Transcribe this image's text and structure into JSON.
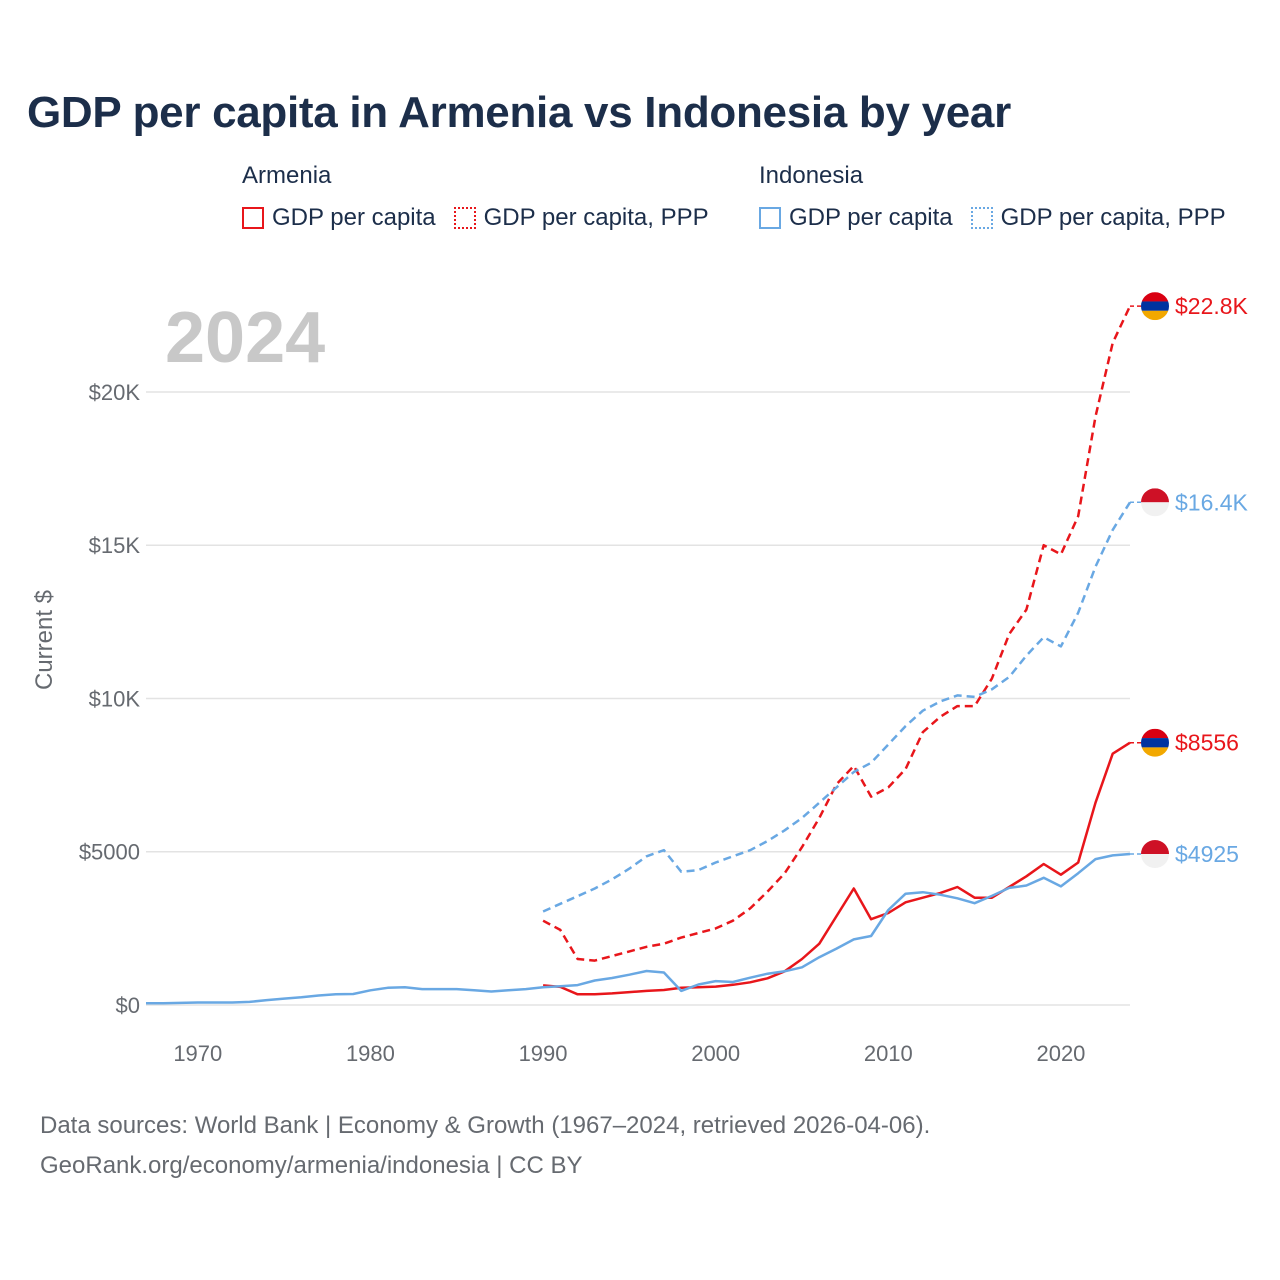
{
  "title": "GDP per capita in Armenia vs Indonesia by year",
  "legend": {
    "armenia": {
      "group": "Armenia",
      "gdp": "GDP per capita",
      "ppp": "GDP per capita, PPP",
      "color": "#e8161b"
    },
    "indonesia": {
      "group": "Indonesia",
      "gdp": "GDP per capita",
      "ppp": "GDP per capita, PPP",
      "color": "#69a8e3"
    }
  },
  "footer": {
    "sources": "Data sources: World Bank | Economy & Growth (1967–2024, retrieved 2026-04-06).",
    "credit": "GeoRank.org/economy/armenia/indonesia | CC BY"
  },
  "chart_data": {
    "type": "line",
    "title": "GDP per capita in Armenia vs Indonesia by year",
    "year_label": "2024",
    "ylabel": "Current $",
    "xlim": [
      1967,
      2024
    ],
    "ylim": [
      0,
      23000
    ],
    "x_ticks": [
      1970,
      1980,
      1990,
      2000,
      2010,
      2020
    ],
    "x_tick_labels": [
      "1970",
      "1980",
      "1990",
      "2000",
      "2010",
      "2020"
    ],
    "y_ticks": [
      0,
      5000,
      10000,
      15000,
      20000
    ],
    "y_tick_labels": [
      "$0",
      "$5000",
      "$10K",
      "$15K",
      "$20K"
    ],
    "grid": true,
    "series": [
      {
        "name": "Armenia GDP per capita",
        "country": "Armenia",
        "color": "#e8161b",
        "dashed": false,
        "end_label": "$8556",
        "flag": "armenia",
        "x": [
          1990,
          1991,
          1992,
          1993,
          1994,
          1995,
          1996,
          1997,
          1998,
          1999,
          2000,
          2001,
          2002,
          2003,
          2004,
          2005,
          2006,
          2007,
          2008,
          2009,
          2010,
          2011,
          2012,
          2013,
          2014,
          2015,
          2016,
          2017,
          2018,
          2019,
          2020,
          2021,
          2022,
          2023,
          2024
        ],
        "values": [
          640,
          590,
          350,
          350,
          380,
          420,
          460,
          490,
          560,
          580,
          600,
          660,
          740,
          870,
          1100,
          1500,
          2000,
          2900,
          3800,
          2800,
          3000,
          3350,
          3500,
          3650,
          3850,
          3500,
          3500,
          3850,
          4200,
          4600,
          4250,
          4650,
          6600,
          8200,
          8556
        ]
      },
      {
        "name": "Armenia GDP per capita, PPP",
        "country": "Armenia",
        "color": "#e8161b",
        "dashed": true,
        "end_label": "$22.8K",
        "flag": "armenia",
        "x": [
          1990,
          1991,
          1992,
          1993,
          1994,
          1995,
          1996,
          1997,
          1998,
          1999,
          2000,
          2001,
          2002,
          2003,
          2004,
          2005,
          2006,
          2007,
          2008,
          2009,
          2010,
          2011,
          2012,
          2013,
          2014,
          2015,
          2016,
          2017,
          2018,
          2019,
          2020,
          2021,
          2022,
          2023,
          2024
        ],
        "values": [
          2750,
          2450,
          1500,
          1450,
          1600,
          1750,
          1900,
          2000,
          2200,
          2350,
          2500,
          2750,
          3150,
          3700,
          4300,
          5150,
          6100,
          7200,
          7800,
          6800,
          7100,
          7700,
          8900,
          9400,
          9750,
          9750,
          10650,
          12100,
          12900,
          15000,
          14700,
          15950,
          19200,
          21600,
          22800
        ]
      },
      {
        "name": "Indonesia GDP per capita",
        "country": "Indonesia",
        "color": "#69a8e3",
        "dashed": false,
        "end_label": "$4925",
        "flag": "indonesia",
        "x": [
          1967,
          1968,
          1969,
          1970,
          1971,
          1972,
          1973,
          1974,
          1975,
          1976,
          1977,
          1978,
          1979,
          1980,
          1981,
          1982,
          1983,
          1984,
          1985,
          1986,
          1987,
          1988,
          1989,
          1990,
          1991,
          1992,
          1993,
          1994,
          1995,
          1996,
          1997,
          1998,
          1999,
          2000,
          2001,
          2002,
          2003,
          2004,
          2005,
          2006,
          2007,
          2008,
          2009,
          2010,
          2011,
          2012,
          2013,
          2014,
          2015,
          2016,
          2017,
          2018,
          2019,
          2020,
          2021,
          2022,
          2023,
          2024
        ],
        "values": [
          55,
          60,
          70,
          80,
          80,
          80,
          100,
          160,
          210,
          250,
          310,
          350,
          360,
          480,
          560,
          580,
          520,
          520,
          520,
          480,
          440,
          480,
          520,
          580,
          610,
          650,
          800,
          880,
          990,
          1110,
          1060,
          460,
          670,
          780,
          750,
          890,
          1020,
          1100,
          1230,
          1560,
          1840,
          2140,
          2250,
          3100,
          3630,
          3680,
          3600,
          3480,
          3320,
          3560,
          3820,
          3900,
          4150,
          3870,
          4300,
          4760,
          4880,
          4925
        ]
      },
      {
        "name": "Indonesia GDP per capita, PPP",
        "country": "Indonesia",
        "color": "#69a8e3",
        "dashed": true,
        "end_label": "$16.4K",
        "flag": "indonesia",
        "x": [
          1990,
          1991,
          1992,
          1993,
          1994,
          1995,
          1996,
          1997,
          1998,
          1999,
          2000,
          2001,
          2002,
          2003,
          2004,
          2005,
          2006,
          2007,
          2008,
          2009,
          2010,
          2011,
          2012,
          2013,
          2014,
          2015,
          2016,
          2017,
          2018,
          2019,
          2020,
          2021,
          2022,
          2023,
          2024
        ],
        "values": [
          3050,
          3300,
          3550,
          3800,
          4100,
          4450,
          4850,
          5050,
          4350,
          4400,
          4650,
          4850,
          5050,
          5350,
          5700,
          6100,
          6600,
          7100,
          7600,
          7900,
          8500,
          9100,
          9600,
          9900,
          10100,
          10050,
          10300,
          10700,
          11400,
          12000,
          11700,
          12800,
          14300,
          15500,
          16400
        ]
      }
    ]
  }
}
